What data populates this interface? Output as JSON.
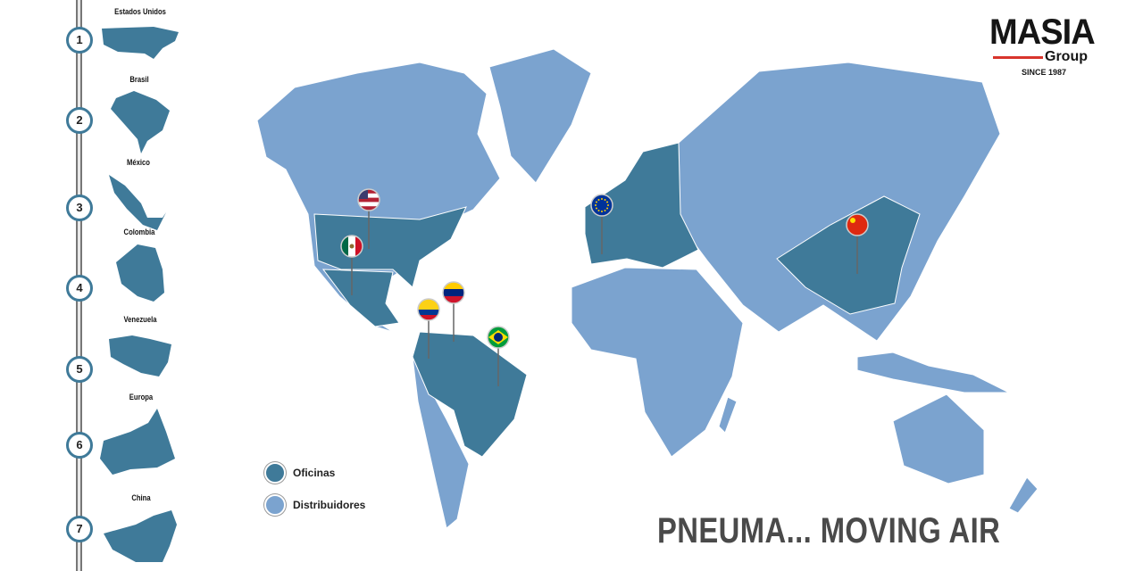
{
  "brand": {
    "name": "MASIA",
    "sub": "Group",
    "since": "SINCE 1987"
  },
  "slogan": "PNEUMA... MOVING AIR",
  "colors": {
    "oficinas": "#3f7a99",
    "distribuidores": "#7ba3cf",
    "step_ring": "#3f7a99",
    "accent_red": "#d8342c"
  },
  "countries": [
    {
      "num": "1",
      "name": "Estados Unidos"
    },
    {
      "num": "2",
      "name": "Brasil"
    },
    {
      "num": "3",
      "name": "México"
    },
    {
      "num": "4",
      "name": "Colombia"
    },
    {
      "num": "5",
      "name": "Venezuela"
    },
    {
      "num": "6",
      "name": "Europa"
    },
    {
      "num": "7",
      "name": "China"
    }
  ],
  "legend": [
    {
      "label": "Oficinas",
      "color": "#3f7a99"
    },
    {
      "label": "Distribuidores",
      "color": "#7ba3cf"
    }
  ],
  "pins": [
    "usa-flag",
    "mexico-flag",
    "colombia-flag",
    "venezuela-flag",
    "brazil-flag",
    "eu-flag",
    "china-flag"
  ]
}
